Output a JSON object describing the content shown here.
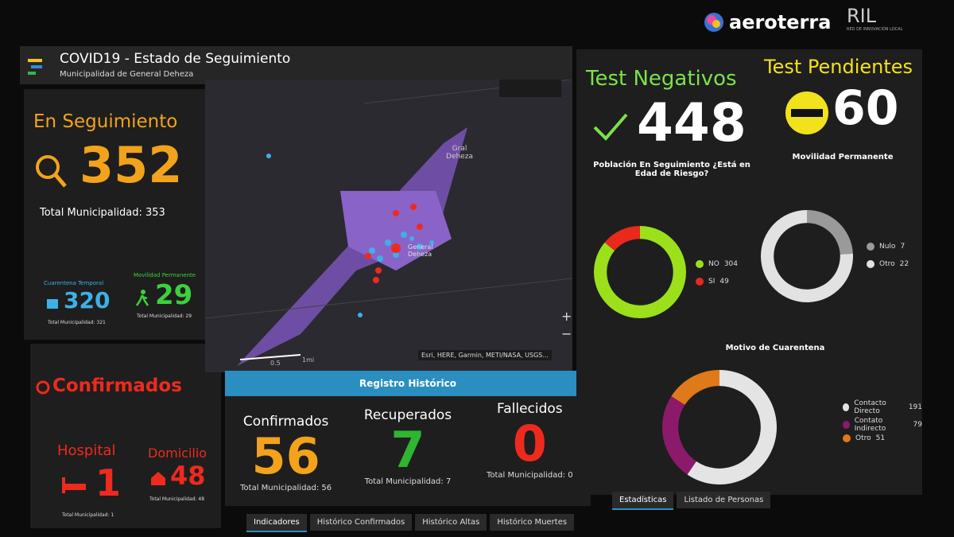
{
  "header": {
    "title": "COVID19 - Estado de Seguimiento",
    "subtitle": "Municipalidad de General Deheza",
    "brand": "aeroterra",
    "brand2": "RIL",
    "brand2_sub": "RED DE INNOVACIÓN LOCAL"
  },
  "seguimiento": {
    "title": "En Seguimiento",
    "value": 352,
    "total": "Total Municipalidad: 353"
  },
  "cuarentena": {
    "label": "Cuarentena Temporal",
    "value": 320,
    "total": "Total Municipalidad: 321"
  },
  "movilidad": {
    "label": "Movilidad Permanente",
    "value": 29,
    "total": "Total Municipalidad: 29"
  },
  "confirmados": {
    "title": "Confirmados",
    "hospital": {
      "label": "Hospital",
      "value": 1,
      "total": "Total Municipalidad: 1"
    },
    "domicilio": {
      "label": "Domicilio",
      "value": 48,
      "total": "Total Municipalidad: 48"
    }
  },
  "map": {
    "town_label": "Gral Deheza",
    "city_label": "General Deheza",
    "scale": [
      "0.5",
      "1mi"
    ],
    "attribution": "Esri, HERE, Garmin, METI/NASA, USGS...",
    "zoom_in": "+",
    "zoom_out": "−"
  },
  "registro": {
    "title": "Registro Histórico",
    "items": [
      {
        "label": "Confirmados",
        "value": 56,
        "total": "Total Municipalidad: 56",
        "color": "#f2a31b"
      },
      {
        "label": "Recuperados",
        "value": 7,
        "total": "Total Municipalidad: 7",
        "color": "#2fb52f"
      },
      {
        "label": "Fallecidos",
        "value": 0,
        "total": "Total Municipalidad: 0",
        "color": "#ee2a1e"
      }
    ]
  },
  "negativos": {
    "title": "Test Negativos",
    "value": 448
  },
  "pendientes": {
    "title": "Test Pendientes",
    "value": 60
  },
  "donuts": [
    {
      "title": "Población En Seguimiento ¿Está en Edad de Riesgo?",
      "series": [
        {
          "name": "NO",
          "value": 304,
          "color": "#9be01b"
        },
        {
          "name": "SI",
          "value": 49,
          "color": "#e8291c"
        }
      ]
    },
    {
      "title": "Movilidad Permanente",
      "series": [
        {
          "name": "Nulo",
          "value": 7,
          "color": "#9a9a9a"
        },
        {
          "name": "Otro",
          "value": 22,
          "color": "#e2e2e2"
        }
      ]
    },
    {
      "title": "Motivo de Cuarentena",
      "series": [
        {
          "name": "Contacto Directo",
          "value": 191,
          "color": "#e4e4e4"
        },
        {
          "name": "Contato Indirecto",
          "value": 79,
          "color": "#8c1a6a"
        },
        {
          "name": "Otro",
          "value": 51,
          "color": "#e0791a"
        }
      ]
    }
  ],
  "tabs_left": [
    "Indicadores",
    "Histórico Confirmados",
    "Histórico Altas",
    "Histórico Muertes"
  ],
  "tabs_right": [
    "Estadísticas",
    "Listado de Personas"
  ]
}
